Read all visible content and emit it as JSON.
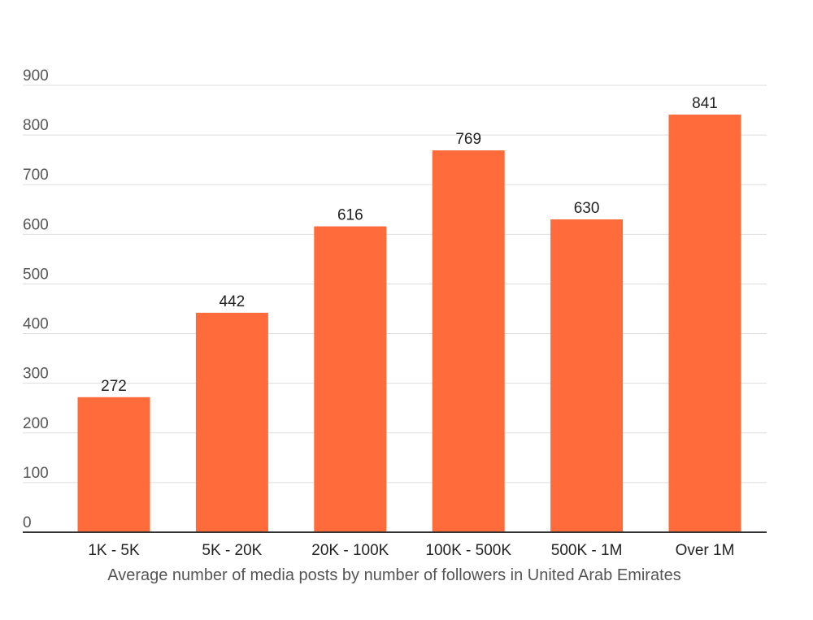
{
  "chart_data": {
    "type": "bar",
    "categories": [
      "1K - 5K",
      "5K - 20K",
      "20K - 100K",
      "100K - 500K",
      "500K - 1M",
      "Over 1M"
    ],
    "values": [
      272,
      442,
      616,
      769,
      630,
      841
    ],
    "title": "",
    "xlabel": "Average number of media posts by number of followers in United Arab Emirates",
    "ylabel": "",
    "ylim": [
      0,
      900
    ],
    "yticks": [
      0,
      100,
      200,
      300,
      400,
      500,
      600,
      700,
      800,
      900
    ],
    "grid": true,
    "legend": "none",
    "bar_color": "#ff6b3a",
    "data_labels": true
  }
}
